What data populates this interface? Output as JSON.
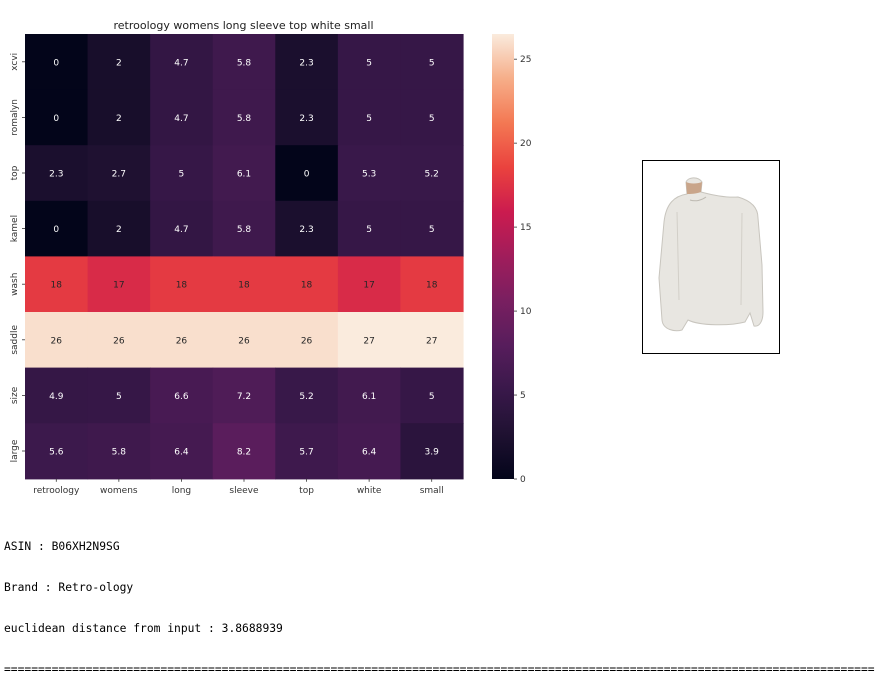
{
  "chart_data": {
    "type": "heatmap",
    "title": "retroology womens long sleeve top white small",
    "x_labels": [
      "retroology",
      "womens",
      "long",
      "sleeve",
      "top",
      "white",
      "small"
    ],
    "y_labels": [
      "xcvi",
      "romalyn",
      "top",
      "kamel",
      "wash",
      "saddle",
      "size",
      "large"
    ],
    "values": [
      [
        0,
        2,
        4.7,
        5.8,
        2.3,
        5,
        5
      ],
      [
        0,
        2,
        4.7,
        5.8,
        2.3,
        5,
        5
      ],
      [
        2.3,
        2.7,
        5,
        6.1,
        0,
        5.3,
        5.2
      ],
      [
        0,
        2,
        4.7,
        5.8,
        2.3,
        5,
        5
      ],
      [
        18,
        17,
        18,
        18,
        18,
        17,
        18
      ],
      [
        26,
        26,
        26,
        26,
        26,
        27,
        27
      ],
      [
        4.9,
        5,
        6.6,
        7.2,
        5.2,
        6.1,
        5
      ],
      [
        5.6,
        5.8,
        6.4,
        8.2,
        5.7,
        6.4,
        3.9
      ]
    ],
    "colorbar": {
      "min": 0,
      "max": 26.5,
      "ticks": [
        0,
        5,
        10,
        15,
        20,
        25
      ]
    },
    "colormap": "rocket"
  },
  "product_image": {
    "description_icon": "white-long-sleeve-top-photo"
  },
  "info": {
    "asin": "ASIN : B06XH2N9SG",
    "brand": "Brand : Retro-ology",
    "distance": "euclidean distance from input : 3.8688939",
    "separator": "================================================================================================================================"
  }
}
